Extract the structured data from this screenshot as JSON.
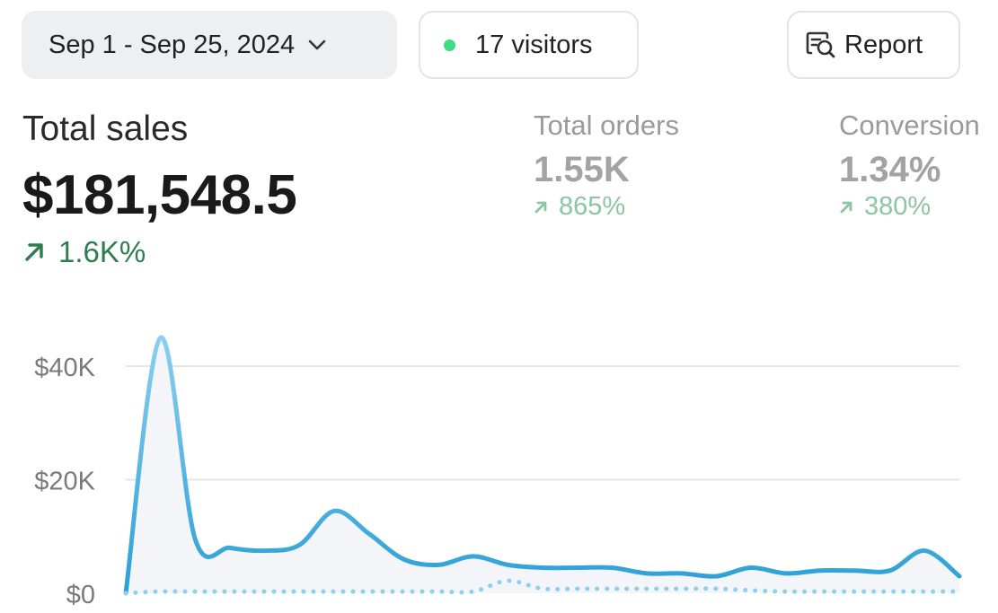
{
  "header": {
    "date_range": "Sep 1 - Sep 25, 2024",
    "visitors": "17 visitors",
    "report_label": "Report"
  },
  "metrics": {
    "total_sales": {
      "label": "Total sales",
      "value": "$181,548.5",
      "change": "1.6K%"
    },
    "total_orders": {
      "label": "Total orders",
      "value": "1.55K",
      "change": "865%"
    },
    "conversion": {
      "label": "Conversion",
      "value": "1.34%",
      "change": "380%"
    }
  },
  "colors": {
    "live_dot": "#3ddc84",
    "positive_strong": "#2e7d4f",
    "positive_muted": "#8cc5a4",
    "line": "#2a9fd6",
    "line_light": "#8ccfee",
    "grid": "#e4e4e4",
    "axis_text": "#7a7a7a"
  },
  "icons": {
    "date_dropdown": "chevron-down-icon",
    "live_indicator": "status-dot-icon",
    "report": "report-search-icon",
    "trend": "arrow-up-right-icon"
  },
  "chart_data": {
    "type": "line",
    "ylim": [
      0,
      40000
    ],
    "y_ticks": [
      {
        "value": 0,
        "label": "$0"
      },
      {
        "value": 20000,
        "label": "$20K"
      },
      {
        "value": 40000,
        "label": "$40K"
      }
    ],
    "grid": true,
    "series": [
      {
        "style": "solid",
        "x": [
          1,
          2,
          3,
          4,
          5,
          6,
          7,
          8,
          9,
          10,
          11,
          12,
          13,
          14,
          15,
          16,
          17,
          18,
          19,
          20,
          21,
          22,
          23,
          24,
          25
        ],
        "values": [
          0,
          45000,
          9500,
          8000,
          7500,
          8500,
          14500,
          10500,
          6000,
          5000,
          6500,
          5000,
          4500,
          4500,
          4500,
          3500,
          3500,
          3000,
          4500,
          3500,
          4000,
          4000,
          4000,
          7500,
          3000
        ]
      },
      {
        "style": "dotted",
        "x": [
          1,
          2,
          3,
          4,
          5,
          6,
          7,
          8,
          9,
          10,
          11,
          12,
          13,
          14,
          15,
          16,
          17,
          18,
          19,
          20,
          21,
          22,
          23,
          24,
          25
        ],
        "values": [
          0,
          300,
          300,
          300,
          300,
          300,
          300,
          300,
          300,
          300,
          300,
          2200,
          800,
          800,
          800,
          800,
          800,
          800,
          500,
          300,
          300,
          300,
          300,
          300,
          300
        ]
      }
    ]
  }
}
